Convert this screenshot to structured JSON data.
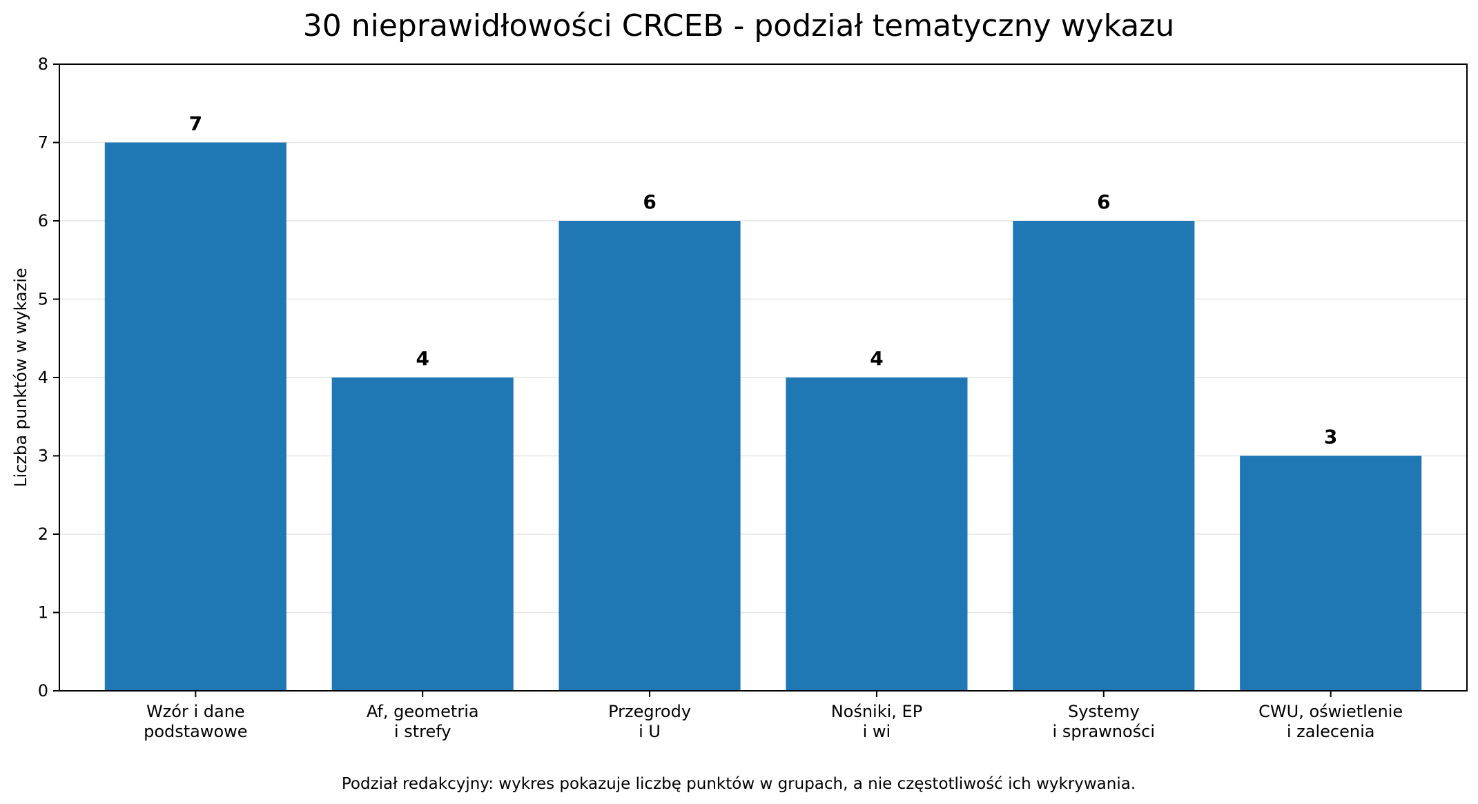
{
  "chart_data": {
    "type": "bar",
    "title": "30 nieprawidłowości CRCEB - podział tematyczny wykazu",
    "xlabel": "",
    "ylabel": "Liczba punktów w wykazie",
    "categories": [
      [
        "Wzór i dane",
        "podstawowe"
      ],
      [
        "Af, geometria",
        "i strefy"
      ],
      [
        "Przegrody",
        "i U"
      ],
      [
        "Nośniki, EP",
        "i wi"
      ],
      [
        "Systemy",
        "i sprawności"
      ],
      [
        "CWU, oświetlenie",
        "i zalecenia"
      ]
    ],
    "values": [
      7,
      4,
      6,
      4,
      6,
      3
    ],
    "data_labels": [
      "7",
      "4",
      "6",
      "4",
      "6",
      "3"
    ],
    "ylim": [
      0,
      8
    ],
    "yticks": [
      0,
      1,
      2,
      3,
      4,
      5,
      6,
      7,
      8
    ],
    "grid": "horizontal",
    "bar_color": "#1f77b4",
    "grid_color": "#e6e6e6",
    "annotation": "Podział redakcyjny: wykres pokazuje liczbę punktów w grupach, a nie częstotliwość ich wykrywania."
  }
}
